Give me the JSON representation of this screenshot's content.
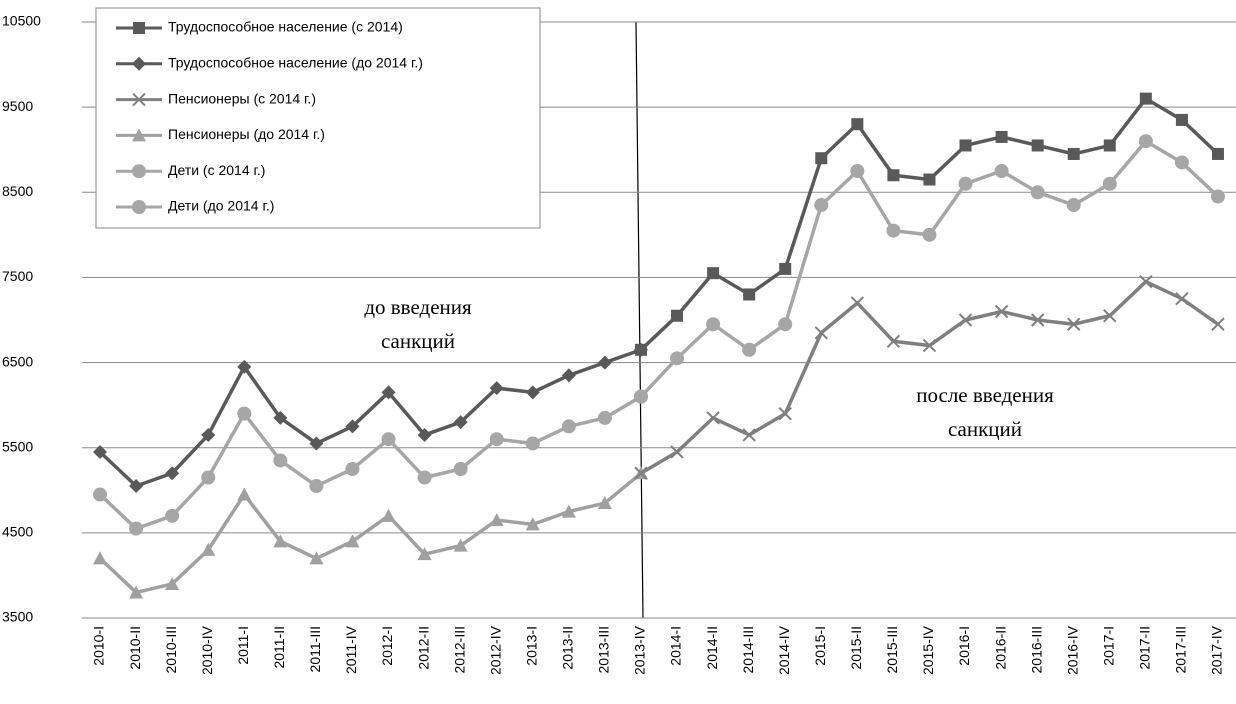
{
  "chart_data": {
    "type": "line",
    "categories": [
      "2010-I",
      "2010-II",
      "2010-III",
      "2010-IV",
      "2011-I",
      "2011-II",
      "2011-III",
      "2011-IV",
      "2012-I",
      "2012-II",
      "2012-III",
      "2012-IV",
      "2013-I",
      "2013-II",
      "2013-III",
      "2013-IV",
      "2014-I",
      "2014-II",
      "2014-III",
      "2014-IV",
      "2015-I",
      "2015-II",
      "2015-III",
      "2015-IV",
      "2016-I",
      "2016-II",
      "2016-III",
      "2016-IV",
      "2017-I",
      "2017-II",
      "2017-III",
      "2017-IV"
    ],
    "series": [
      {
        "name": "Трудоспособное население (с 2014)",
        "color": "#595959",
        "marker": "square",
        "values": [
          null,
          null,
          null,
          null,
          null,
          null,
          null,
          null,
          null,
          null,
          null,
          null,
          null,
          null,
          null,
          6650,
          7050,
          7550,
          7300,
          7600,
          8900,
          9300,
          8700,
          8650,
          9050,
          9150,
          9050,
          8950,
          9050,
          9600,
          9350,
          8950
        ]
      },
      {
        "name": "Трудоспособное население (до 2014 г.)",
        "color": "#595959",
        "marker": "diamond",
        "values": [
          5450,
          5050,
          5200,
          5650,
          6450,
          5850,
          5550,
          5750,
          6150,
          5650,
          5800,
          6200,
          6150,
          6350,
          6500,
          6650,
          null,
          null,
          null,
          null,
          null,
          null,
          null,
          null,
          null,
          null,
          null,
          null,
          null,
          null,
          null,
          null
        ]
      },
      {
        "name": "Пенсионеры (с 2014 г.)",
        "color": "#7f7f7f",
        "marker": "x",
        "values": [
          null,
          null,
          null,
          null,
          null,
          null,
          null,
          null,
          null,
          null,
          null,
          null,
          null,
          null,
          null,
          5200,
          5450,
          5850,
          5650,
          5900,
          6850,
          7200,
          6750,
          6700,
          7000,
          7100,
          7000,
          6950,
          7050,
          7450,
          7250,
          6950
        ]
      },
      {
        "name": "Пенсионеры (до 2014 г.)",
        "color": "#a0a0a0",
        "marker": "triangle",
        "values": [
          4200,
          3800,
          3900,
          4300,
          4950,
          4400,
          4200,
          4400,
          4700,
          4250,
          4350,
          4650,
          4600,
          4750,
          4850,
          5200,
          null,
          null,
          null,
          null,
          null,
          null,
          null,
          null,
          null,
          null,
          null,
          null,
          null,
          null,
          null,
          null
        ]
      },
      {
        "name": "Дети (с 2014 г.)",
        "color": "#a6a6a6",
        "marker": "circle",
        "values": [
          null,
          null,
          null,
          null,
          null,
          null,
          null,
          null,
          null,
          null,
          null,
          null,
          null,
          null,
          null,
          6100,
          6550,
          6950,
          6650,
          6950,
          8350,
          8750,
          8050,
          8000,
          8600,
          8750,
          8500,
          8350,
          8600,
          9100,
          8850,
          8450
        ]
      },
      {
        "name": "Дети (до 2014 г.)",
        "color": "#a6a6a6",
        "marker": "circle",
        "values": [
          4950,
          4550,
          4700,
          5150,
          5900,
          5350,
          5050,
          5250,
          5600,
          5150,
          5250,
          5600,
          5550,
          5750,
          5850,
          6100,
          null,
          null,
          null,
          null,
          null,
          null,
          null,
          null,
          null,
          null,
          null,
          null,
          null,
          null,
          null,
          null
        ]
      }
    ],
    "annotations": [
      {
        "lines": [
          "до введения",
          "санкций"
        ]
      },
      {
        "lines": [
          "после введения",
          "санкций"
        ]
      }
    ],
    "ylim": [
      3500,
      10500
    ],
    "yticks": [
      3500,
      4500,
      5500,
      6500,
      7500,
      8500,
      9500,
      10500
    ],
    "grid": true
  }
}
